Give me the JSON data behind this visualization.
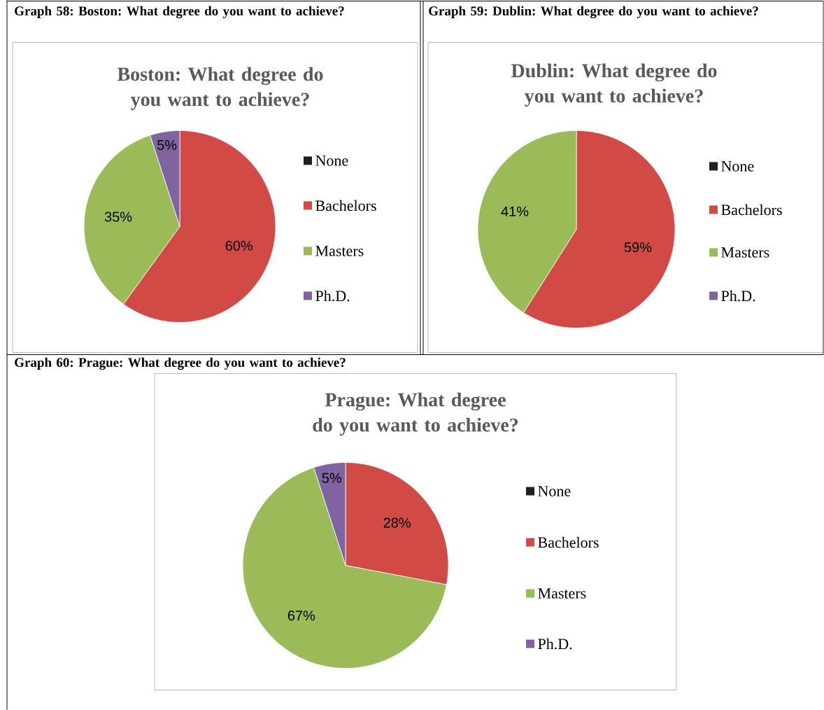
{
  "chart_data": [
    {
      "type": "pie",
      "title": "Boston: What degree do you want to achieve?",
      "annotations": [
        "Graph 58: Boston: What degree do you want to achieve?"
      ],
      "categories": [
        "None",
        "Bachelors",
        "Masters",
        "Ph.D."
      ],
      "values": [
        0,
        60,
        35,
        5
      ],
      "colors": [
        "#1f1f1f",
        "#d24a45",
        "#9bbb59",
        "#8064a2"
      ],
      "value_labels": [
        null,
        "60%",
        "35%",
        "5%"
      ],
      "legend": "right"
    },
    {
      "type": "pie",
      "title": "Dublin: What degree do you want to achieve?",
      "annotations": [
        "Graph 59: Dublin: What degree do you want to achieve?"
      ],
      "categories": [
        "None",
        "Bachelors",
        "Masters",
        "Ph.D."
      ],
      "values": [
        0,
        59,
        41,
        0
      ],
      "colors": [
        "#1f1f1f",
        "#d24a45",
        "#9bbb59",
        "#8064a2"
      ],
      "value_labels": [
        null,
        "59%",
        "41%",
        null
      ],
      "legend": "right"
    },
    {
      "type": "pie",
      "title": "Prague: What degree do you want to achieve?",
      "annotations": [
        "Graph 60: Prague: What degree do you want to achieve?"
      ],
      "categories": [
        "None",
        "Bachelors",
        "Masters",
        "Ph.D."
      ],
      "values": [
        0,
        28,
        67,
        5
      ],
      "colors": [
        "#1f1f1f",
        "#d24a45",
        "#9bbb59",
        "#8064a2"
      ],
      "value_labels": [
        null,
        "28%",
        "67%",
        "5%"
      ],
      "legend": "right"
    }
  ]
}
